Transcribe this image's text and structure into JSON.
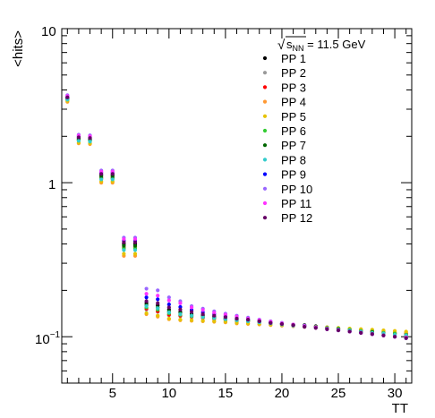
{
  "chart_data": {
    "type": "scatter",
    "title": "",
    "ylabel": "<hits>",
    "xlabel": "TT",
    "ylog": true,
    "xlim": [
      0.5,
      31.5
    ],
    "ylim": [
      0.05,
      10
    ],
    "grid": false,
    "legend_position": "top-right",
    "legend_title": {
      "sqrt_symbol": "√",
      "s": "s",
      "sub": "NN",
      "rest": " = 11.5 GeV"
    },
    "x_ticks": [
      {
        "value": 5,
        "label": "5"
      },
      {
        "value": 10,
        "label": "10"
      },
      {
        "value": 15,
        "label": "15"
      },
      {
        "value": 20,
        "label": "20"
      },
      {
        "value": 25,
        "label": "25"
      },
      {
        "value": 30,
        "label": "30"
      }
    ],
    "y_ticks": [
      {
        "value": 0.1,
        "base": "10",
        "exp": "−1"
      },
      {
        "value": 1,
        "base": "1",
        "exp": ""
      },
      {
        "value": 10,
        "base": "10",
        "exp": ""
      }
    ],
    "x": [
      1,
      2,
      3,
      4,
      5,
      6,
      7,
      8,
      9,
      10,
      11,
      12,
      13,
      14,
      15,
      16,
      17,
      18,
      19,
      20,
      21,
      22,
      23,
      24,
      25,
      26,
      27,
      28,
      29,
      30,
      31
    ],
    "series": [
      {
        "name": "PP 1",
        "color": "#000000",
        "values": [
          3.55,
          1.95,
          1.92,
          1.12,
          1.12,
          0.4,
          0.4,
          0.165,
          0.16,
          0.15,
          0.145,
          0.14,
          0.138,
          0.135,
          0.132,
          0.13,
          0.128,
          0.127,
          0.124,
          0.122,
          0.12,
          0.119,
          0.117,
          0.115,
          0.113,
          0.112,
          0.11,
          0.109,
          0.108,
          0.106,
          0.105
        ]
      },
      {
        "name": "PP 2",
        "color": "#999999",
        "values": [
          3.45,
          1.88,
          1.86,
          1.06,
          1.06,
          0.37,
          0.37,
          0.15,
          0.145,
          0.138,
          0.136,
          0.134,
          0.132,
          0.13,
          0.128,
          0.126,
          0.125,
          0.124,
          0.122,
          0.12,
          0.118,
          0.117,
          0.115,
          0.114,
          0.112,
          0.11,
          0.109,
          0.108,
          0.107,
          0.105,
          0.104
        ]
      },
      {
        "name": "PP 3",
        "color": "#ff0000",
        "values": [
          3.5,
          1.9,
          1.88,
          1.08,
          1.08,
          0.38,
          0.38,
          0.152,
          0.146,
          0.139,
          0.137,
          0.135,
          0.133,
          0.131,
          0.129,
          0.127,
          0.126,
          0.124,
          0.122,
          0.121,
          0.119,
          0.117,
          0.116,
          0.114,
          0.113,
          0.111,
          0.11,
          0.108,
          0.107,
          0.105,
          0.104
        ]
      },
      {
        "name": "PP 4",
        "color": "#ff9933",
        "values": [
          3.35,
          1.8,
          1.78,
          1.0,
          1.0,
          0.335,
          0.335,
          0.14,
          0.135,
          0.13,
          0.128,
          0.127,
          0.126,
          0.125,
          0.124,
          0.122,
          0.121,
          0.12,
          0.119,
          0.118,
          0.117,
          0.116,
          0.115,
          0.114,
          0.113,
          0.112,
          0.111,
          0.11,
          0.109,
          0.108,
          0.107
        ]
      },
      {
        "name": "PP 5",
        "color": "#e6c200",
        "values": [
          3.4,
          1.82,
          1.8,
          1.02,
          1.02,
          0.345,
          0.345,
          0.142,
          0.137,
          0.131,
          0.129,
          0.128,
          0.127,
          0.126,
          0.125,
          0.123,
          0.122,
          0.121,
          0.12,
          0.119,
          0.118,
          0.117,
          0.116,
          0.115,
          0.114,
          0.113,
          0.112,
          0.111,
          0.11,
          0.109,
          0.108
        ]
      },
      {
        "name": "PP 6",
        "color": "#33cc33",
        "values": [
          3.48,
          1.89,
          1.87,
          1.07,
          1.07,
          0.375,
          0.375,
          0.155,
          0.15,
          0.142,
          0.139,
          0.136,
          0.134,
          0.132,
          0.13,
          0.128,
          0.126,
          0.125,
          0.123,
          0.121,
          0.119,
          0.118,
          0.116,
          0.114,
          0.113,
          0.111,
          0.109,
          0.108,
          0.106,
          0.105,
          0.103
        ]
      },
      {
        "name": "PP 7",
        "color": "#006600",
        "values": [
          3.52,
          1.92,
          1.9,
          1.1,
          1.1,
          0.39,
          0.39,
          0.16,
          0.155,
          0.146,
          0.142,
          0.138,
          0.135,
          0.133,
          0.131,
          0.129,
          0.127,
          0.125,
          0.123,
          0.121,
          0.119,
          0.117,
          0.115,
          0.113,
          0.112,
          0.11,
          0.108,
          0.107,
          0.105,
          0.103,
          0.102
        ]
      },
      {
        "name": "PP 8",
        "color": "#33cccc",
        "values": [
          3.46,
          1.87,
          1.85,
          1.05,
          1.05,
          0.365,
          0.365,
          0.158,
          0.153,
          0.144,
          0.14,
          0.137,
          0.134,
          0.132,
          0.13,
          0.128,
          0.126,
          0.124,
          0.122,
          0.12,
          0.118,
          0.117,
          0.115,
          0.113,
          0.111,
          0.11,
          0.108,
          0.106,
          0.105,
          0.103,
          0.102
        ]
      },
      {
        "name": "PP 9",
        "color": "#0000ff",
        "values": [
          3.6,
          2.0,
          1.98,
          1.16,
          1.16,
          0.42,
          0.42,
          0.18,
          0.175,
          0.162,
          0.156,
          0.149,
          0.144,
          0.14,
          0.136,
          0.133,
          0.13,
          0.127,
          0.124,
          0.122,
          0.119,
          0.117,
          0.115,
          0.112,
          0.11,
          0.108,
          0.106,
          0.104,
          0.102,
          0.1,
          0.098
        ]
      },
      {
        "name": "PP 10",
        "color": "#9966ff",
        "values": [
          3.7,
          2.05,
          2.03,
          1.2,
          1.2,
          0.44,
          0.44,
          0.205,
          0.2,
          0.18,
          0.17,
          0.158,
          0.152,
          0.146,
          0.141,
          0.137,
          0.133,
          0.129,
          0.126,
          0.123,
          0.12,
          0.118,
          0.115,
          0.113,
          0.111,
          0.108,
          0.106,
          0.104,
          0.102,
          0.1,
          0.098
        ]
      },
      {
        "name": "PP 11",
        "color": "#ff33ff",
        "values": [
          3.65,
          2.02,
          2.0,
          1.18,
          1.18,
          0.43,
          0.43,
          0.19,
          0.185,
          0.172,
          0.165,
          0.155,
          0.149,
          0.143,
          0.139,
          0.135,
          0.131,
          0.128,
          0.125,
          0.122,
          0.12,
          0.117,
          0.115,
          0.112,
          0.11,
          0.108,
          0.106,
          0.104,
          0.102,
          0.1,
          0.099
        ]
      },
      {
        "name": "PP 12",
        "color": "#660066",
        "values": [
          3.58,
          1.97,
          1.95,
          1.14,
          1.14,
          0.41,
          0.41,
          0.17,
          0.165,
          0.155,
          0.15,
          0.145,
          0.14,
          0.137,
          0.134,
          0.131,
          0.129,
          0.126,
          0.123,
          0.121,
          0.119,
          0.116,
          0.114,
          0.112,
          0.11,
          0.108,
          0.106,
          0.104,
          0.102,
          0.1,
          0.098
        ]
      }
    ]
  }
}
